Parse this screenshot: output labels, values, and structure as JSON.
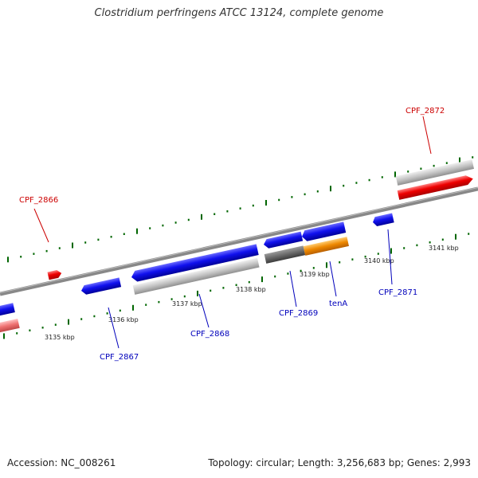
{
  "title": "Clostridium perfringens ATCC 13124, complete genome",
  "footer": {
    "accession": "Accession: NC_008261",
    "stats": "Topology: circular; Length: 3,256,683 bp; Genes: 2,993"
  },
  "scale_labels": [
    "3135 kbp",
    "3136 kbp",
    "3137 kbp",
    "3138 kbp",
    "3139 kbp",
    "3140 kbp",
    "3141 kbp"
  ],
  "gene_labels": [
    {
      "name": "CPF_2866",
      "color": "#cc0000"
    },
    {
      "name": "CPF_2867",
      "color": "#0000bb"
    },
    {
      "name": "CPF_2868",
      "color": "#0000bb"
    },
    {
      "name": "CPF_2869",
      "color": "#0000bb"
    },
    {
      "name": "tenA",
      "color": "#0000bb"
    },
    {
      "name": "CPF_2871",
      "color": "#0000bb"
    },
    {
      "name": "CPF_2872",
      "color": "#cc0000"
    }
  ],
  "colors": {
    "backbone": "#888888",
    "forward_cds": "#ee0000",
    "reverse_cds": "#0000dd",
    "tick": "#006600",
    "orange_feature": "#ee8800"
  }
}
